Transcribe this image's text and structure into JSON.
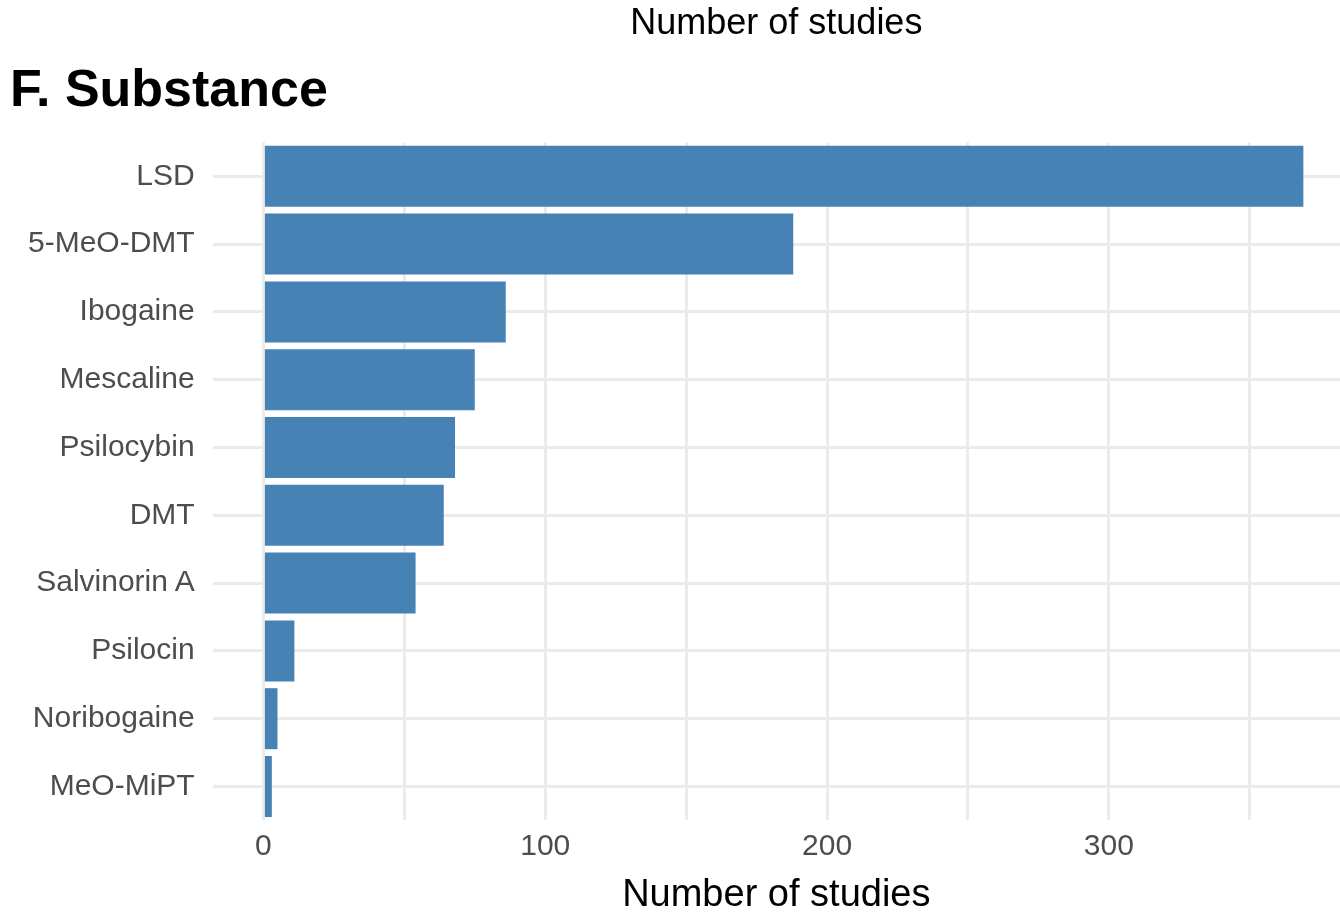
{
  "chart_data": {
    "type": "bar",
    "orientation": "horizontal",
    "title": "F. Substance",
    "xlabel": "Number of studies",
    "annotations": [
      "Number of studies"
    ],
    "categories": [
      "LSD",
      "5-MeO-DMT",
      "Ibogaine",
      "Mescaline",
      "Psilocybin",
      "DMT",
      "Salvinorin A",
      "Psilocin",
      "Noribogaine",
      "MeO-MiPT"
    ],
    "values": [
      369,
      188,
      86,
      75,
      68,
      64,
      54,
      11,
      5,
      3
    ],
    "color": "#4682b4",
    "xlim": [
      -18,
      382
    ],
    "xticks": [
      0,
      {
        "value": 50,
        "label": null
      },
      100,
      {
        "value": 150,
        "label": null
      },
      200,
      {
        "value": 250,
        "label": null
      },
      300,
      {
        "value": 350,
        "label": null
      }
    ],
    "grid": true
  }
}
